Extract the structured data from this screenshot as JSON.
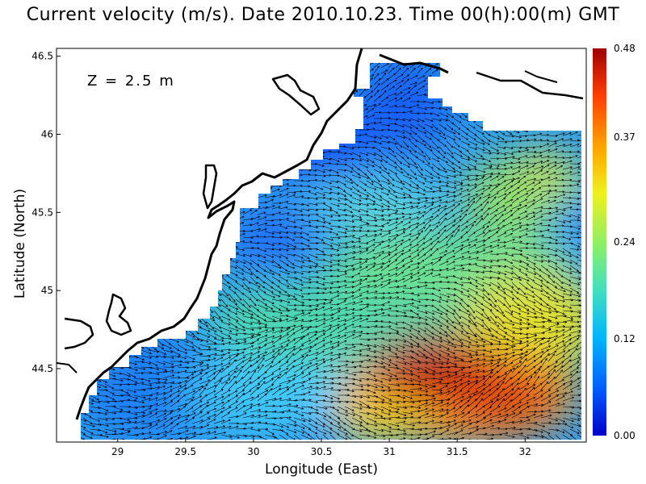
{
  "title": "Current velocity (m/s). Date 2010.10.23. Time 00(h):00(m) GMT",
  "depth_label": "Z = 2.5 m",
  "x_axis": {
    "label": "Longitude (East)",
    "range": [
      28.55,
      32.45
    ],
    "ticks": [
      {
        "value": 29,
        "label": "29"
      },
      {
        "value": 29.5,
        "label": "29.5"
      },
      {
        "value": 30,
        "label": "30"
      },
      {
        "value": 30.5,
        "label": "30.5"
      },
      {
        "value": 31,
        "label": "31"
      },
      {
        "value": 31.5,
        "label": "31.5"
      },
      {
        "value": 32,
        "label": "32"
      }
    ]
  },
  "y_axis": {
    "label": "Latitude (North)",
    "range": [
      44.03,
      46.55
    ],
    "ticks": [
      {
        "value": 44.5,
        "label": "44.5"
      },
      {
        "value": 45,
        "label": "45"
      },
      {
        "value": 45.5,
        "label": "45.5"
      },
      {
        "value": 46,
        "label": "46"
      },
      {
        "value": 46.5,
        "label": "46.5"
      }
    ]
  },
  "colorbar": {
    "min": 0.0,
    "max": 0.48,
    "labels": [
      "0.48",
      "0.37",
      "0.24",
      "0.12",
      "0.00"
    ],
    "values": [
      0.48,
      0.37,
      0.24,
      0.12,
      0.0
    ],
    "colors": [
      "#0000c8",
      "#0060ff",
      "#00b4ff",
      "#40e0c0",
      "#90f060",
      "#f0f020",
      "#ffa000",
      "#ff4000",
      "#a00000"
    ]
  },
  "colors": {
    "land": "#ffffff",
    "coastline": "#000000",
    "arrows": "#000000"
  }
}
